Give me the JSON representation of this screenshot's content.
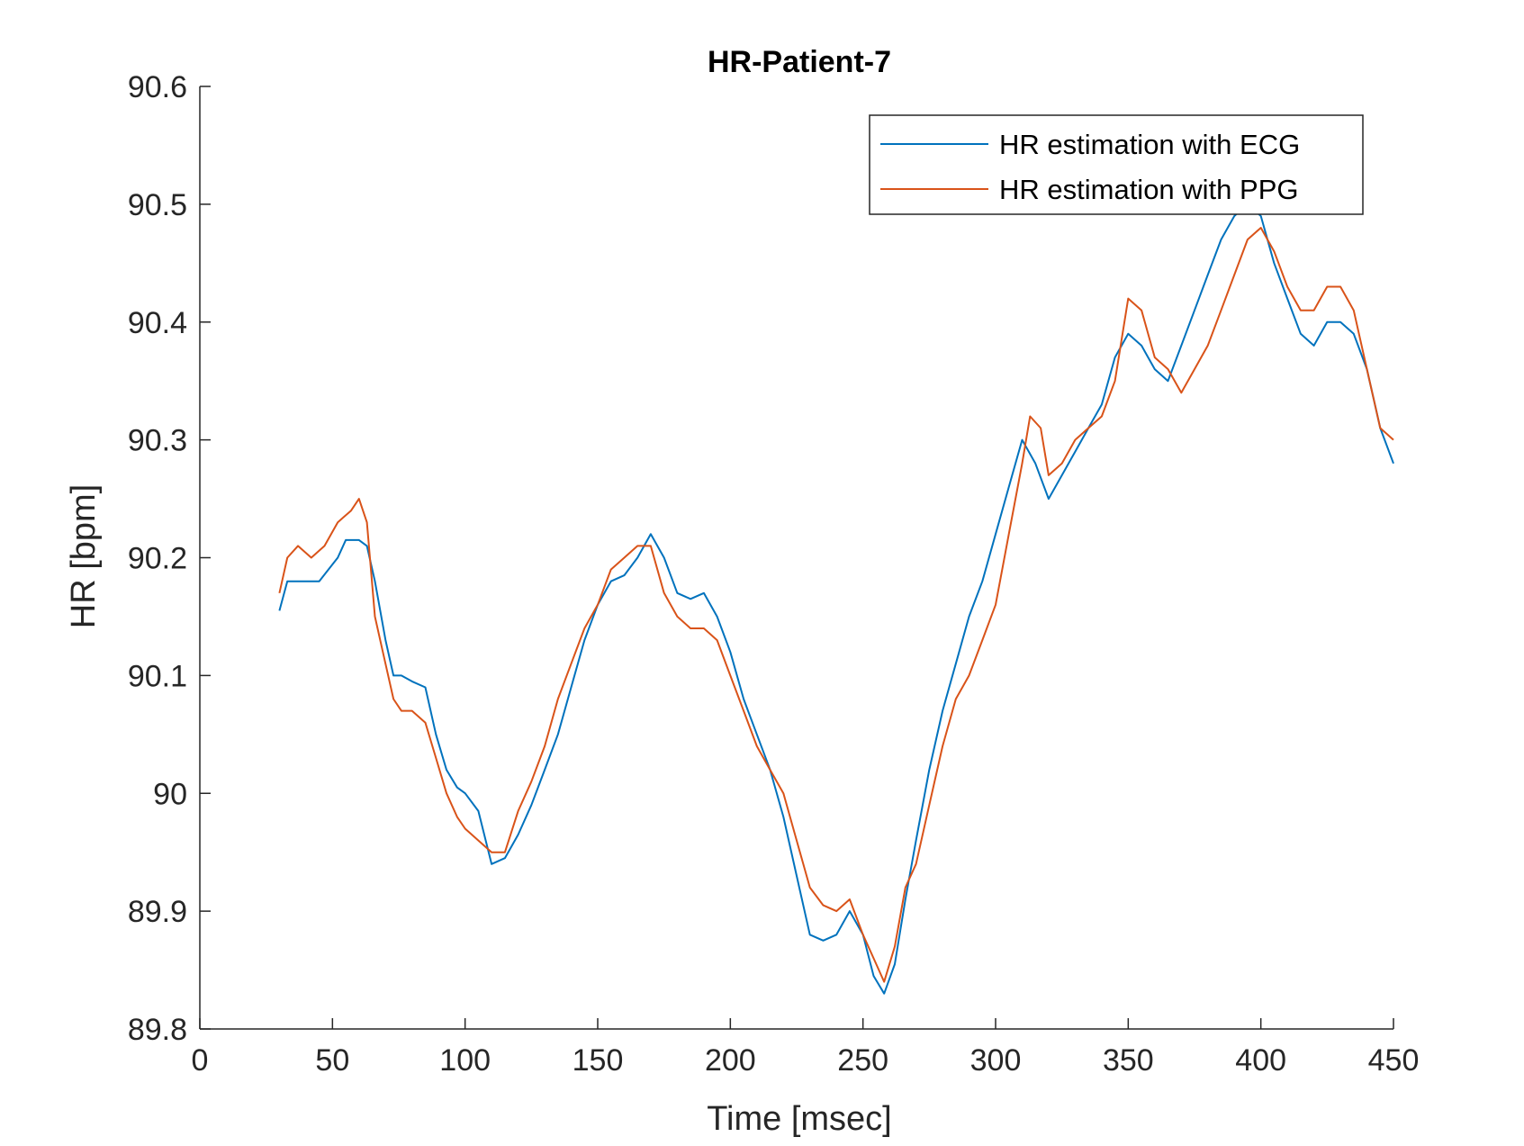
{
  "chart_data": {
    "type": "line",
    "title": "HR-Patient-7",
    "xlabel": "Time [msec]",
    "ylabel": "HR [bpm]",
    "xlim": [
      0,
      450
    ],
    "ylim": [
      89.8,
      90.6
    ],
    "xticks": [
      0,
      50,
      100,
      150,
      200,
      250,
      300,
      350,
      400,
      450
    ],
    "xtick_labels": [
      "0",
      "50",
      "100",
      "150",
      "200",
      "250",
      "300",
      "350",
      "400",
      "450"
    ],
    "yticks": [
      89.8,
      89.9,
      90,
      90.1,
      90.2,
      90.3,
      90.4,
      90.5,
      90.6
    ],
    "ytick_labels": [
      "89.8",
      "89.9",
      "90",
      "90.1",
      "90.2",
      "90.3",
      "90.4",
      "90.5",
      "90.6"
    ],
    "grid": false,
    "legend_position": "top-right",
    "series": [
      {
        "name": "HR estimation with ECG",
        "color": "#0072BD",
        "x": [
          30,
          33,
          38,
          45,
          52,
          55,
          60,
          63,
          66,
          70,
          73,
          76,
          80,
          85,
          89,
          93,
          97,
          100,
          105,
          110,
          115,
          120,
          125,
          130,
          135,
          140,
          145,
          150,
          155,
          160,
          165,
          170,
          175,
          180,
          185,
          190,
          195,
          200,
          205,
          210,
          215,
          220,
          225,
          230,
          235,
          240,
          245,
          250,
          254,
          258,
          262,
          266,
          270,
          275,
          280,
          285,
          290,
          295,
          300,
          305,
          310,
          315,
          320,
          325,
          330,
          335,
          340,
          345,
          350,
          355,
          360,
          365,
          370,
          375,
          380,
          385,
          390,
          395,
          400,
          405,
          410,
          415,
          420,
          425,
          430,
          435,
          440,
          445,
          450
        ],
        "y": [
          90.155,
          90.18,
          90.18,
          90.18,
          90.2,
          90.215,
          90.215,
          90.21,
          90.18,
          90.13,
          90.1,
          90.1,
          90.095,
          90.09,
          90.05,
          90.02,
          90.005,
          90.0,
          89.985,
          89.94,
          89.945,
          89.965,
          89.99,
          90.02,
          90.05,
          90.09,
          90.13,
          90.16,
          90.18,
          90.185,
          90.2,
          90.22,
          90.2,
          90.17,
          90.165,
          90.17,
          90.15,
          90.12,
          90.08,
          90.05,
          90.02,
          89.98,
          89.93,
          89.88,
          89.875,
          89.88,
          89.9,
          89.88,
          89.845,
          89.83,
          89.855,
          89.91,
          89.96,
          90.02,
          90.07,
          90.11,
          90.15,
          90.18,
          90.22,
          90.26,
          90.3,
          90.28,
          90.25,
          90.27,
          90.29,
          90.31,
          90.33,
          90.37,
          90.39,
          90.38,
          90.36,
          90.35,
          90.38,
          90.41,
          90.44,
          90.47,
          90.49,
          90.5,
          90.49,
          90.45,
          90.42,
          90.39,
          90.38,
          90.4,
          90.4,
          90.39,
          90.36,
          90.31,
          90.28
        ]
      },
      {
        "name": "HR estimation with PPG",
        "color": "#D95319",
        "x": [
          30,
          33,
          37,
          42,
          47,
          52,
          57,
          60,
          63,
          66,
          69,
          73,
          76,
          80,
          85,
          89,
          93,
          97,
          100,
          105,
          110,
          115,
          120,
          125,
          130,
          135,
          140,
          145,
          150,
          155,
          160,
          165,
          170,
          175,
          180,
          185,
          190,
          195,
          200,
          205,
          210,
          215,
          220,
          225,
          230,
          235,
          240,
          245,
          250,
          254,
          258,
          262,
          266,
          270,
          275,
          280,
          285,
          290,
          295,
          300,
          305,
          310,
          313,
          317,
          320,
          325,
          330,
          335,
          340,
          345,
          350,
          355,
          360,
          365,
          370,
          375,
          380,
          385,
          390,
          395,
          400,
          405,
          410,
          415,
          420,
          425,
          430,
          435,
          440,
          445,
          450
        ],
        "y": [
          90.17,
          90.2,
          90.21,
          90.2,
          90.21,
          90.23,
          90.24,
          90.25,
          90.23,
          90.15,
          90.12,
          90.08,
          90.07,
          90.07,
          90.06,
          90.03,
          90.0,
          89.98,
          89.97,
          89.96,
          89.95,
          89.95,
          89.985,
          90.01,
          90.04,
          90.08,
          90.11,
          90.14,
          90.16,
          90.19,
          90.2,
          90.21,
          90.21,
          90.17,
          90.15,
          90.14,
          90.14,
          90.13,
          90.1,
          90.07,
          90.04,
          90.02,
          90.0,
          89.96,
          89.92,
          89.905,
          89.9,
          89.91,
          89.88,
          89.86,
          89.84,
          89.87,
          89.92,
          89.94,
          89.99,
          90.04,
          90.08,
          90.1,
          90.13,
          90.16,
          90.22,
          90.28,
          90.32,
          90.31,
          90.27,
          90.28,
          90.3,
          90.31,
          90.32,
          90.35,
          90.42,
          90.41,
          90.37,
          90.36,
          90.34,
          90.36,
          90.38,
          90.41,
          90.44,
          90.47,
          90.48,
          90.46,
          90.43,
          90.41,
          90.41,
          90.43,
          90.43,
          90.41,
          90.36,
          90.31,
          90.3
        ]
      }
    ]
  }
}
